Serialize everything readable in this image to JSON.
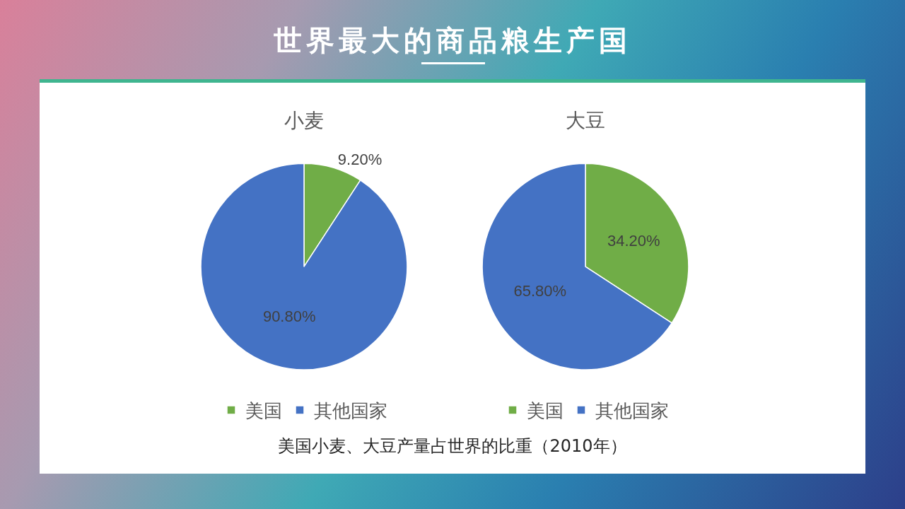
{
  "chart_data": [
    {
      "type": "pie",
      "title": "小麦",
      "categories": [
        "美国",
        "其他国家"
      ],
      "values": [
        9.2,
        90.8
      ],
      "colors": [
        "#70ad47",
        "#4472c4"
      ],
      "value_labels": [
        "9.20%",
        "90.80%"
      ],
      "legend": "bottom",
      "annotations": [
        "世界最大的商品粮生产国",
        "美国小麦、大豆产量占世界的比重（2010年）"
      ]
    },
    {
      "type": "pie",
      "title": "大豆",
      "categories": [
        "美国",
        "其他国家"
      ],
      "values": [
        34.2,
        65.8
      ],
      "colors": [
        "#70ad47",
        "#4472c4"
      ],
      "value_labels": [
        "34.20%",
        "65.80%"
      ],
      "legend": "bottom"
    }
  ]
}
